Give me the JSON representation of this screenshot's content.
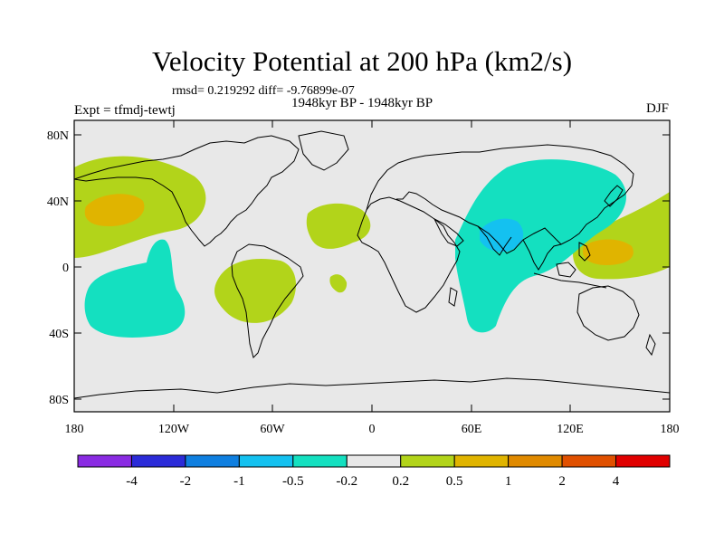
{
  "header": {
    "title": "Velocity Potential at 200 hPa (km2/s)",
    "stats": "rmsd= 0.219292  diff= -9.76899e-07",
    "subtitle": "1948kyr BP - 1948kyr BP",
    "left_label": "Expt = tfmdj-tewtj",
    "right_label": "DJF"
  },
  "map": {
    "lat_labels": [
      "80N",
      "40N",
      "0",
      "40S",
      "80S"
    ],
    "lon_labels": [
      "180",
      "120W",
      "60W",
      "0",
      "60E",
      "120E",
      "180"
    ]
  },
  "colorbar": {
    "labels": [
      "-4",
      "-2",
      "-1",
      "-0.5",
      "-0.2",
      "0.2",
      "0.5",
      "1",
      "2",
      "4"
    ],
    "colors": [
      "#8a2be2",
      "#2b2bd8",
      "#0f7fe0",
      "#14c1f0",
      "#14e0c0",
      "#e8e8e8",
      "#b2d41a",
      "#e0b400",
      "#e08a00",
      "#e05000",
      "#e00000"
    ]
  },
  "palette": {
    "background": "#e8e8e8",
    "positive_low": "#b2d41a",
    "positive_mid": "#e0b400",
    "negative_low": "#14e0c0",
    "negative_mid": "#14c1f0"
  }
}
